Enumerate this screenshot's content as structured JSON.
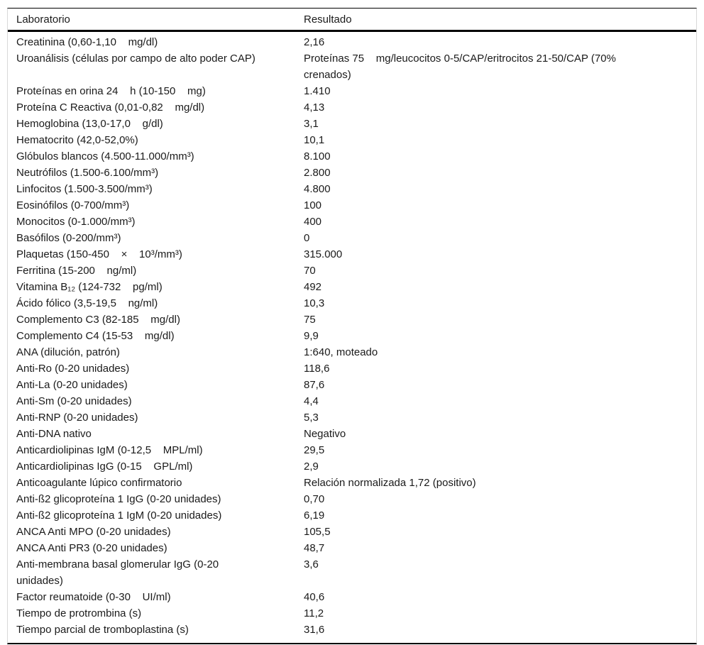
{
  "table": {
    "columns": {
      "laboratorio": "Laboratorio",
      "resultado": "Resultado"
    },
    "rows": [
      {
        "lab": "Creatinina (0,60-1,10    mg/dl)",
        "result": "2,16"
      },
      {
        "lab": "Uroanálisis (células por campo de alto poder CAP)",
        "result": "Proteínas 75    mg/leucocitos 0-5/CAP/eritrocitos 21-50/CAP (70%\ncrenados)"
      },
      {
        "lab": "Proteínas en orina 24    h (10-150    mg)",
        "result": "1.410"
      },
      {
        "lab": "Proteína C Reactiva (0,01-0,82    mg/dl)",
        "result": "4,13"
      },
      {
        "lab": "Hemoglobina (13,0-17,0    g/dl)",
        "result": "3,1"
      },
      {
        "lab": "Hematocrito (42,0-52,0%)",
        "result": "10,1"
      },
      {
        "lab": "Glóbulos blancos (4.500-11.000/mm³)",
        "result": "8.100"
      },
      {
        "lab": "Neutrófilos (1.500-6.100/mm³)",
        "result": "2.800"
      },
      {
        "lab": "Linfocitos (1.500-3.500/mm³)",
        "result": "4.800"
      },
      {
        "lab": "Eosinófilos (0-700/mm³)",
        "result": "100"
      },
      {
        "lab": "Monocitos (0-1.000/mm³)",
        "result": "400"
      },
      {
        "lab": "Basófilos (0-200/mm³)",
        "result": "0"
      },
      {
        "lab": "Plaquetas (150-450    ×    10³/mm³)",
        "result": "315.000"
      },
      {
        "lab": "Ferritina (15-200    ng/ml)",
        "result": "70"
      },
      {
        "lab": "Vitamina B₁₂ (124-732    pg/ml)",
        "result": "492"
      },
      {
        "lab": "Ácido fólico (3,5-19,5    ng/ml)",
        "result": "10,3"
      },
      {
        "lab": "Complemento C3 (82-185    mg/dl)",
        "result": "75"
      },
      {
        "lab": "Complemento C4 (15-53    mg/dl)",
        "result": "9,9"
      },
      {
        "lab": "ANA (dilución, patrón)",
        "result": "1:640, moteado"
      },
      {
        "lab": "Anti-Ro (0-20 unidades)",
        "result": "118,6"
      },
      {
        "lab": "Anti-La (0-20 unidades)",
        "result": "87,6"
      },
      {
        "lab": "Anti-Sm (0-20 unidades)",
        "result": "4,4"
      },
      {
        "lab": "Anti-RNP (0-20 unidades)",
        "result": "5,3"
      },
      {
        "lab": "Anti-DNA nativo",
        "result": "Negativo"
      },
      {
        "lab": "Anticardiolipinas IgM (0-12,5    MPL/ml)",
        "result": "29,5"
      },
      {
        "lab": "Anticardiolipinas IgG (0-15    GPL/ml)",
        "result": "2,9"
      },
      {
        "lab": "Anticoagulante lúpico confirmatorio",
        "result": "Relación normalizada 1,72 (positivo)"
      },
      {
        "lab": "Anti-ß2 glicoproteína 1 IgG (0-20 unidades)",
        "result": "0,70"
      },
      {
        "lab": "Anti-ß2 glicoproteína 1 IgM (0-20 unidades)",
        "result": "6,19"
      },
      {
        "lab": "ANCA Anti MPO (0-20 unidades)",
        "result": "105,5"
      },
      {
        "lab": "ANCA Anti PR3 (0-20 unidades)",
        "result": "48,7"
      },
      {
        "lab": "Anti-membrana basal glomerular IgG (0-20\nunidades)",
        "result": "3,6"
      },
      {
        "lab": "Factor reumatoide (0-30    UI/ml)",
        "result": "40,6"
      },
      {
        "lab": "Tiempo de protrombina (s)",
        "result": "11,2"
      },
      {
        "lab": "Tiempo parcial de tromboplastina (s)",
        "result": "31,6"
      }
    ],
    "colors": {
      "text": "#1a1a1a",
      "rule": "#000000",
      "side_border": "#d8d8d8",
      "background": "#ffffff"
    }
  }
}
